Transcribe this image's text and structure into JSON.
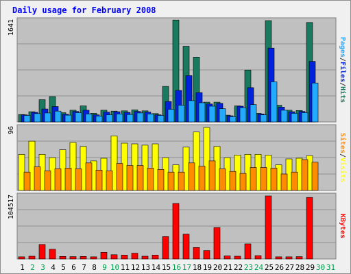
{
  "chart_data": {
    "type": "bar",
    "title": "Daily usage for February 2008",
    "days": [
      "1",
      "2",
      "3",
      "4",
      "5",
      "6",
      "7",
      "8",
      "9",
      "10",
      "11",
      "12",
      "13",
      "14",
      "15",
      "16",
      "17",
      "18",
      "19",
      "20",
      "21",
      "22",
      "23",
      "24",
      "25",
      "26",
      "27",
      "28",
      "29",
      "30",
      "31"
    ],
    "weekend_days": [
      "2",
      "3",
      "9",
      "10",
      "16",
      "17",
      "23",
      "24",
      "30",
      "31"
    ],
    "panels": [
      {
        "id": "hits-panel",
        "max_label": "1641",
        "ymax": 1641,
        "series": [
          {
            "name": "Hits",
            "color": "#1a7a5f",
            "values": [
              120,
              165,
              360,
              410,
              150,
              190,
              260,
              140,
              190,
              175,
              180,
              195,
              180,
              135,
              575,
              1650,
              1225,
              1050,
              320,
              320,
              110,
              260,
              840,
              140,
              1640,
              270,
              190,
              185,
              1610,
              null,
              null
            ]
          },
          {
            "name": "Files",
            "color": "#0022dd",
            "values": [
              115,
              155,
              210,
              250,
              125,
              170,
              190,
              115,
              160,
              165,
              155,
              170,
              160,
              115,
              330,
              510,
              750,
              475,
              290,
              300,
              100,
              255,
              555,
              130,
              1195,
              240,
              165,
              170,
              980,
              null,
              null
            ]
          },
          {
            "name": "Pages",
            "color": "#22aaff",
            "values": [
              105,
              135,
              145,
              175,
              110,
              150,
              130,
              95,
              115,
              130,
              120,
              145,
              130,
              105,
              205,
              270,
              345,
              310,
              255,
              215,
              85,
              230,
              280,
              115,
              650,
              190,
              140,
              150,
              630,
              null,
              null
            ]
          }
        ],
        "legend": [
          "Pages",
          "/",
          "Files",
          "/",
          "Hits"
        ],
        "legend_colors": [
          "#22aaff",
          "#333333",
          "#0022dd",
          "#333333",
          "#1a7a5f"
        ]
      },
      {
        "id": "visits-panel",
        "max_label": "96",
        "ymax": 96,
        "series": [
          {
            "name": "Visits",
            "color": "#ffff00",
            "values": [
              55,
              75,
              55,
              50,
              62,
              73,
              67,
              45,
              49,
              83,
              72,
              71,
              69,
              71,
              50,
              39,
              66,
              89,
              96,
              67,
              50,
              54,
              55,
              55,
              54,
              39,
              48,
              49,
              53,
              null,
              null
            ]
          },
          {
            "name": "Sites",
            "color": "#ff8c00",
            "values": [
              28,
              36,
              30,
              33,
              34,
              33,
              42,
              31,
              30,
              41,
              38,
              38,
              34,
              32,
              28,
              28,
              42,
              37,
              45,
              33,
              29,
              26,
              35,
              35,
              34,
              25,
              28,
              47,
              43,
              null,
              null
            ]
          }
        ],
        "legend": [
          "Sites",
          "/",
          "Visits"
        ],
        "legend_colors": [
          "#ff8c00",
          "#333333",
          "#ffff00"
        ]
      },
      {
        "id": "kbytes-panel",
        "max_label": "104517",
        "ymax": 104517,
        "series": [
          {
            "name": "KBytes",
            "color": "#ff0000",
            "values": [
              3500,
              4500,
              24000,
              16000,
              4200,
              3900,
              4200,
              3500,
              11000,
              7000,
              6500,
              9500,
              4500,
              6500,
              37000,
              92000,
              41000,
              19000,
              14000,
              52000,
              5000,
              4500,
              25000,
              5500,
              104517,
              3500,
              3500,
              3900,
              102000,
              null,
              null
            ]
          }
        ],
        "legend": [
          "KBytes"
        ],
        "legend_colors": [
          "#ff0000"
        ]
      }
    ],
    "grid": true
  },
  "colors": {
    "background": "#f0f0f0",
    "plot_background": "#c0c0c0",
    "gridline": "#909090",
    "title": "#0000ff",
    "weekday_label": "#000000",
    "weekend_label": "#00a050"
  }
}
